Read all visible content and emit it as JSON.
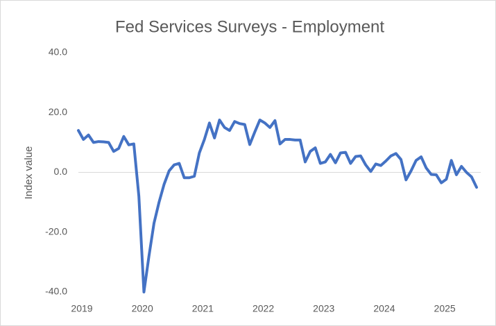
{
  "chart_data": {
    "type": "line",
    "title": "Fed Services Surveys - Employment",
    "y_label": "Index value",
    "categories": [
      "2019",
      null,
      null,
      null,
      null,
      null,
      null,
      null,
      null,
      null,
      null,
      null,
      "2020",
      null,
      null,
      null,
      null,
      null,
      null,
      null,
      null,
      null,
      null,
      null,
      "2021",
      null,
      null,
      null,
      null,
      null,
      null,
      null,
      null,
      null,
      null,
      null,
      "2022",
      null,
      null,
      null,
      null,
      null,
      null,
      null,
      null,
      null,
      null,
      null,
      "2023",
      null,
      null,
      null,
      null,
      null,
      null,
      null,
      null,
      null,
      null,
      null,
      "2024",
      null,
      null,
      null,
      null,
      null,
      null,
      null,
      null,
      null,
      null,
      null,
      "2025",
      null,
      null,
      null,
      null,
      null,
      null,
      null
    ],
    "series": [
      {
        "name": "Employment",
        "color": "#4472c4",
        "values": [
          14,
          11,
          12.5,
          10,
          10.3,
          10.2,
          10,
          7,
          8,
          12,
          9.2,
          9.5,
          -8,
          -40,
          -28,
          -17,
          -10,
          -4,
          0.5,
          2.5,
          3,
          -1.8,
          -1.8,
          -1.3,
          6.5,
          11,
          16.5,
          11.5,
          17.5,
          15,
          14,
          17,
          16.3,
          16,
          9.3,
          13.5,
          17.5,
          16.5,
          15,
          17.3,
          9.5,
          11,
          11,
          10.8,
          10.8,
          3.5,
          7,
          8.2,
          3,
          3.5,
          6,
          3.2,
          6.5,
          6.7,
          3,
          5.3,
          5.5,
          2.5,
          0.3,
          2.8,
          2.3,
          3.8,
          5.5,
          6.3,
          4.3,
          -2.5,
          0.5,
          4,
          5.2,
          1.5,
          -0.7,
          -0.8,
          -3.5,
          -2.3,
          4,
          -0.8,
          2,
          0,
          -1.5,
          -5
        ]
      }
    ],
    "ylim": [
      -40,
      40
    ],
    "yticks": [
      {
        "value": -40,
        "label": "-40.0"
      },
      {
        "value": -20,
        "label": "-20.0"
      },
      {
        "value": 0,
        "label": "0.0"
      },
      {
        "value": 20,
        "label": "20.0"
      },
      {
        "value": 40,
        "label": "40.0"
      }
    ],
    "grid": false,
    "legend": false
  }
}
